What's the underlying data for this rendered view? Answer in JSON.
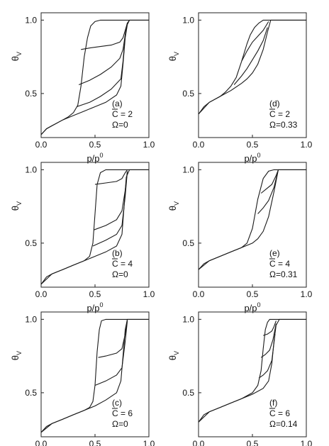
{
  "chart_data": [
    {
      "id": "a",
      "type": "line",
      "xlabel_base": "p/p",
      "xlabel_sup": "0",
      "ylabel_base": "θ",
      "ylabel_sub": "V",
      "xlim": [
        0,
        1.0
      ],
      "ylim": [
        0.2,
        1.05
      ],
      "xticks": [
        "0.0",
        "0.5",
        "1.0"
      ],
      "yticks": [
        "0.5",
        "1.0"
      ],
      "annotation": [
        "(a)",
        "C = 2",
        "Ω=0"
      ],
      "series": [
        {
          "x": [
            0,
            0.05,
            0.1,
            0.15,
            0.2,
            0.25,
            0.3,
            0.34,
            0.37,
            0.4,
            0.43,
            0.46,
            0.5,
            0.55,
            0.6,
            0.65,
            0.7,
            0.75,
            0.8,
            0.85,
            1.0
          ],
          "y": [
            0.22,
            0.26,
            0.28,
            0.3,
            0.32,
            0.34,
            0.37,
            0.42,
            0.55,
            0.75,
            0.88,
            0.96,
            0.99,
            1.0,
            1.0,
            1.0,
            1.0,
            1.0,
            1.0,
            1.0,
            1.0
          ]
        },
        {
          "x": [
            0,
            0.05,
            0.1,
            0.2,
            0.3,
            0.4,
            0.5,
            0.6,
            0.7,
            0.74,
            0.76,
            0.78,
            0.8,
            0.82,
            0.85,
            1.0
          ],
          "y": [
            0.22,
            0.26,
            0.28,
            0.32,
            0.35,
            0.38,
            0.41,
            0.44,
            0.49,
            0.55,
            0.7,
            0.88,
            0.97,
            1.0,
            1.0,
            1.0
          ]
        },
        {
          "x": [
            0.37,
            0.45,
            0.55,
            0.65,
            0.73,
            0.76,
            0.78,
            0.8,
            0.82
          ],
          "y": [
            0.8,
            0.81,
            0.82,
            0.83,
            0.85,
            0.88,
            0.93,
            0.98,
            1.0
          ]
        },
        {
          "x": [
            0.35,
            0.45,
            0.55,
            0.65,
            0.73,
            0.76,
            0.78,
            0.8
          ],
          "y": [
            0.56,
            0.59,
            0.63,
            0.68,
            0.74,
            0.8,
            0.9,
            0.98
          ]
        },
        {
          "x": [
            0.33,
            0.45,
            0.55,
            0.65,
            0.74,
            0.76,
            0.78,
            0.8
          ],
          "y": [
            0.41,
            0.44,
            0.48,
            0.53,
            0.6,
            0.72,
            0.9,
            0.98
          ]
        }
      ]
    },
    {
      "id": "d",
      "type": "line",
      "xlabel_base": "p/p",
      "xlabel_sup": "0",
      "ylabel_base": "θ",
      "ylabel_sub": "V",
      "xlim": [
        0,
        1.0
      ],
      "ylim": [
        0.2,
        1.05
      ],
      "xticks": [
        "0.0",
        "0.5",
        "1.0"
      ],
      "yticks": [
        "0.5",
        "1.0"
      ],
      "annotation": [
        "(d)",
        "C = 2",
        "Ω=0.33"
      ],
      "series": [
        {
          "x": [
            0,
            0.05,
            0.1,
            0.15,
            0.2,
            0.25,
            0.3,
            0.35,
            0.4,
            0.45,
            0.48,
            0.52,
            0.56,
            0.6,
            0.65,
            1.0
          ],
          "y": [
            0.36,
            0.41,
            0.44,
            0.46,
            0.48,
            0.51,
            0.55,
            0.61,
            0.72,
            0.84,
            0.9,
            0.95,
            0.98,
            1.0,
            1.0,
            1.0
          ]
        },
        {
          "x": [
            0,
            0.1,
            0.2,
            0.3,
            0.4,
            0.45,
            0.5,
            0.55,
            0.6,
            0.64,
            0.67,
            1.0
          ],
          "y": [
            0.36,
            0.44,
            0.48,
            0.52,
            0.57,
            0.6,
            0.64,
            0.7,
            0.8,
            0.92,
            1.0,
            1.0
          ]
        },
        {
          "x": [
            0.4,
            0.45,
            0.5,
            0.55,
            0.6,
            0.65
          ],
          "y": [
            0.72,
            0.79,
            0.85,
            0.89,
            0.93,
            0.99
          ]
        },
        {
          "x": [
            0.33,
            0.4,
            0.45,
            0.5,
            0.55,
            0.6,
            0.64
          ],
          "y": [
            0.56,
            0.62,
            0.67,
            0.73,
            0.79,
            0.86,
            0.95
          ]
        }
      ]
    },
    {
      "id": "b",
      "type": "line",
      "xlabel_base": "p/p",
      "xlabel_sup": "0",
      "ylabel_base": "θ",
      "ylabel_sub": "V",
      "xlim": [
        0,
        1.0
      ],
      "ylim": [
        0.2,
        1.05
      ],
      "xticks": [
        "0.0",
        "0.5",
        "1.0"
      ],
      "yticks": [
        "0.5",
        "1.0"
      ],
      "annotation": [
        "(b)",
        "C = 4",
        "Ω=0"
      ],
      "series": [
        {
          "x": [
            0,
            0.05,
            0.1,
            0.2,
            0.3,
            0.4,
            0.45,
            0.48,
            0.5,
            0.52,
            0.55,
            0.6,
            0.7,
            0.8,
            1.0
          ],
          "y": [
            0.22,
            0.27,
            0.29,
            0.32,
            0.35,
            0.38,
            0.41,
            0.5,
            0.7,
            0.9,
            0.98,
            1.0,
            1.0,
            1.0,
            1.0
          ]
        },
        {
          "x": [
            0,
            0.1,
            0.2,
            0.3,
            0.4,
            0.5,
            0.6,
            0.7,
            0.75,
            0.77,
            0.79,
            0.82,
            1.0
          ],
          "y": [
            0.22,
            0.29,
            0.32,
            0.35,
            0.38,
            0.41,
            0.44,
            0.48,
            0.56,
            0.75,
            0.95,
            1.0,
            1.0
          ]
        },
        {
          "x": [
            0.5,
            0.6,
            0.7,
            0.75,
            0.78,
            0.8
          ],
          "y": [
            0.9,
            0.91,
            0.92,
            0.94,
            0.98,
            1.0
          ]
        },
        {
          "x": [
            0.49,
            0.6,
            0.7,
            0.75,
            0.78,
            0.8
          ],
          "y": [
            0.59,
            0.62,
            0.66,
            0.72,
            0.86,
            0.99
          ]
        },
        {
          "x": [
            0.48,
            0.6,
            0.7,
            0.75,
            0.78,
            0.8
          ],
          "y": [
            0.48,
            0.52,
            0.56,
            0.62,
            0.82,
            0.99
          ]
        }
      ]
    },
    {
      "id": "e",
      "type": "line",
      "xlabel_base": "p/p",
      "xlabel_sup": "0",
      "ylabel_base": "θ",
      "ylabel_sub": "V",
      "xlim": [
        0,
        1.0
      ],
      "ylim": [
        0.2,
        1.05
      ],
      "xticks": [
        "0.0",
        "0.5",
        "1.0"
      ],
      "yticks": [
        "0.5",
        "1.0"
      ],
      "annotation": [
        "(e)",
        "C = 4",
        "Ω=0.31"
      ],
      "series": [
        {
          "x": [
            0,
            0.05,
            0.1,
            0.2,
            0.3,
            0.4,
            0.45,
            0.5,
            0.55,
            0.6,
            0.65,
            0.7,
            1.0
          ],
          "y": [
            0.32,
            0.36,
            0.38,
            0.41,
            0.44,
            0.47,
            0.5,
            0.6,
            0.8,
            0.94,
            0.99,
            1.0,
            1.0
          ]
        },
        {
          "x": [
            0,
            0.1,
            0.2,
            0.3,
            0.4,
            0.5,
            0.55,
            0.6,
            0.65,
            0.7,
            0.74,
            1.0
          ],
          "y": [
            0.32,
            0.38,
            0.41,
            0.44,
            0.47,
            0.5,
            0.53,
            0.58,
            0.68,
            0.85,
            1.0,
            1.0
          ]
        },
        {
          "x": [
            0.58,
            0.63,
            0.68,
            0.72,
            0.74
          ],
          "y": [
            0.84,
            0.87,
            0.9,
            0.96,
            1.0
          ]
        },
        {
          "x": [
            0.55,
            0.6,
            0.65,
            0.7,
            0.73
          ],
          "y": [
            0.7,
            0.74,
            0.79,
            0.88,
            0.97
          ]
        }
      ]
    },
    {
      "id": "c",
      "type": "line",
      "xlabel_base": "p/p",
      "xlabel_sup": "0",
      "ylabel_base": "θ",
      "ylabel_sub": "V",
      "xlim": [
        0,
        1.0
      ],
      "ylim": [
        0.2,
        1.05
      ],
      "xticks": [
        "0.0",
        "0.5",
        "1.0"
      ],
      "yticks": [
        "0.5",
        "1.0"
      ],
      "annotation": [
        "(c)",
        "C = 6",
        "Ω=0"
      ],
      "series": [
        {
          "x": [
            0,
            0.05,
            0.1,
            0.2,
            0.3,
            0.4,
            0.45,
            0.48,
            0.5,
            0.52,
            0.54,
            0.56,
            0.6,
            0.7,
            1.0
          ],
          "y": [
            0.23,
            0.27,
            0.29,
            0.32,
            0.35,
            0.38,
            0.4,
            0.44,
            0.55,
            0.78,
            0.93,
            0.99,
            1.0,
            1.0,
            1.0
          ]
        },
        {
          "x": [
            0,
            0.1,
            0.2,
            0.3,
            0.4,
            0.5,
            0.6,
            0.7,
            0.74,
            0.76,
            0.78,
            0.8,
            1.0
          ],
          "y": [
            0.23,
            0.29,
            0.32,
            0.35,
            0.38,
            0.41,
            0.45,
            0.5,
            0.58,
            0.75,
            0.93,
            1.0,
            1.0
          ]
        },
        {
          "x": [
            0.53,
            0.6,
            0.7,
            0.75,
            0.78,
            0.8
          ],
          "y": [
            0.74,
            0.75,
            0.77,
            0.8,
            0.9,
            1.0
          ]
        },
        {
          "x": [
            0.5,
            0.6,
            0.7,
            0.75,
            0.78,
            0.8
          ],
          "y": [
            0.55,
            0.58,
            0.62,
            0.67,
            0.85,
            0.99
          ]
        }
      ]
    },
    {
      "id": "f",
      "type": "line",
      "xlabel_base": "p/p",
      "xlabel_sup": "0",
      "ylabel_base": "θ",
      "ylabel_sub": "V",
      "xlim": [
        0,
        1.0
      ],
      "ylim": [
        0.2,
        1.05
      ],
      "xticks": [
        "0.0",
        "0.5",
        "1.0"
      ],
      "yticks": [
        "0.5",
        "1.0"
      ],
      "annotation": [
        "(f)",
        "C = 6",
        "Ω=0.14"
      ],
      "series": [
        {
          "x": [
            0,
            0.05,
            0.1,
            0.2,
            0.3,
            0.4,
            0.5,
            0.55,
            0.58,
            0.6,
            0.62,
            0.64,
            0.66,
            0.7,
            1.0
          ],
          "y": [
            0.3,
            0.35,
            0.37,
            0.4,
            0.43,
            0.46,
            0.5,
            0.55,
            0.65,
            0.8,
            0.93,
            0.98,
            1.0,
            1.0,
            1.0
          ]
        },
        {
          "x": [
            0,
            0.1,
            0.2,
            0.3,
            0.4,
            0.5,
            0.6,
            0.65,
            0.68,
            0.7,
            0.72,
            0.75,
            1.0
          ],
          "y": [
            0.3,
            0.37,
            0.4,
            0.43,
            0.46,
            0.49,
            0.53,
            0.58,
            0.7,
            0.85,
            0.96,
            1.0,
            1.0
          ]
        },
        {
          "x": [
            0.6,
            0.64,
            0.68,
            0.7,
            0.72
          ],
          "y": [
            0.89,
            0.9,
            0.92,
            0.95,
            0.99
          ]
        },
        {
          "x": [
            0.58,
            0.62,
            0.66,
            0.69,
            0.72
          ],
          "y": [
            0.74,
            0.76,
            0.79,
            0.86,
            0.97
          ]
        },
        {
          "x": [
            0.56,
            0.6,
            0.64,
            0.68,
            0.71
          ],
          "y": [
            0.6,
            0.62,
            0.65,
            0.72,
            0.9
          ]
        }
      ]
    }
  ]
}
